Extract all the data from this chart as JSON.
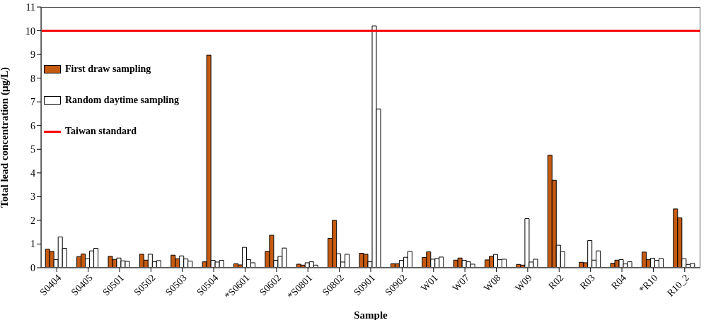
{
  "chart_data": {
    "type": "bar",
    "xlabel": "Sample",
    "ylabel": "Total lead concentration (μg/L)",
    "categories": [
      "S0404",
      "S0405",
      "S0501",
      "S0502",
      "S0503",
      "S0504",
      "*S0601",
      "S0602",
      "*S0801",
      "S0802",
      "S0901",
      "S0902",
      "W01",
      "W07",
      "W08",
      "W09",
      "R02",
      "R03",
      "R04",
      "*R10",
      "R10_2"
    ],
    "series": [
      {
        "name": "First draw sampling",
        "color": "#c55a11",
        "values": [
          0.78,
          0.47,
          0.48,
          0.57,
          0.53,
          0.25,
          0.17,
          0.69,
          0.15,
          1.24,
          0.61,
          0.17,
          0.43,
          0.32,
          0.33,
          0.14,
          4.75,
          0.23,
          0.19,
          0.66,
          2.48
        ]
      },
      {
        "color": "#c55a11",
        "values": [
          0.69,
          0.58,
          0.35,
          0.32,
          0.38,
          8.97,
          0.12,
          1.37,
          0.11,
          2.0,
          0.57,
          0.17,
          0.67,
          0.41,
          0.48,
          0.11,
          3.69,
          0.21,
          0.32,
          0.34,
          2.11
        ]
      },
      {
        "name": "Random daytime sampling",
        "color": "#ffffff",
        "values": [
          0.34,
          0.38,
          0.41,
          0.57,
          0.5,
          0.31,
          0.86,
          0.31,
          0.21,
          0.59,
          0.25,
          0.31,
          0.36,
          0.31,
          0.56,
          2.07,
          0.95,
          1.15,
          0.34,
          0.4,
          0.38
        ]
      },
      {
        "color": "#ffffff",
        "values": [
          1.3,
          0.71,
          0.29,
          0.25,
          0.37,
          0.24,
          0.34,
          0.48,
          0.25,
          0.24,
          10.2,
          0.44,
          0.39,
          0.25,
          0.34,
          0.24,
          0.68,
          0.32,
          0.16,
          0.31,
          0.14
        ]
      },
      {
        "color": "#ffffff",
        "values": [
          0.82,
          0.82,
          0.27,
          0.3,
          0.28,
          0.31,
          0.21,
          0.83,
          0.11,
          0.57,
          6.7,
          0.69,
          0.45,
          0.15,
          0.36,
          0.36,
          null,
          0.71,
          0.25,
          0.39,
          0.18
        ]
      }
    ],
    "ylim": [
      0,
      11
    ],
    "yticks": [
      0,
      1,
      2,
      3,
      4,
      5,
      6,
      7,
      8,
      9,
      10,
      11
    ],
    "grid": false,
    "legend": "top left",
    "ref_lines": [
      {
        "axis": "y",
        "value": 10,
        "label": "Taiwan standard",
        "color": "#ff0000"
      }
    ]
  }
}
